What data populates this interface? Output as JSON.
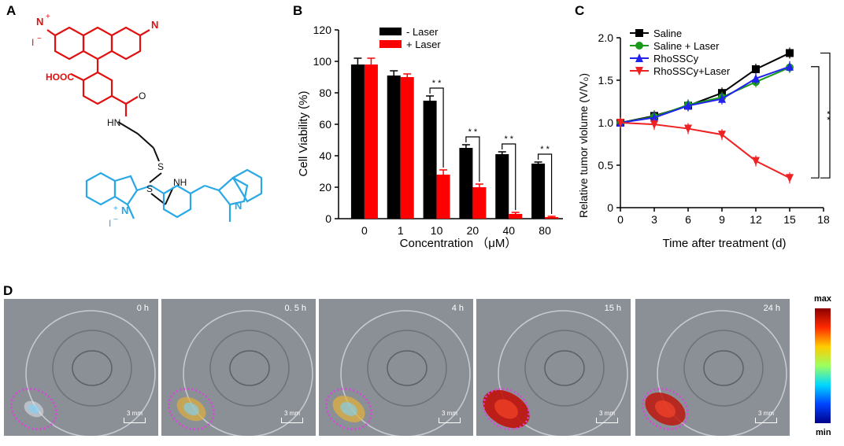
{
  "panels": {
    "a": "A",
    "b": "B",
    "c": "C",
    "d": "D"
  },
  "structure": {
    "nme2_top_left": "N",
    "plus_sign": "+",
    "iodide_top": "I",
    "minus": "−",
    "nme2_top_right": "N",
    "cooh": "HOOC",
    "o_carbonyl": "O",
    "hn": "HN",
    "s1": "S",
    "s2": "S",
    "nh": "NH",
    "n_left": "N",
    "iodide_bottom": "I",
    "n_right": "N"
  },
  "chart_data": [
    {
      "type": "bar",
      "panel": "B",
      "categories": [
        "0",
        "1",
        "10",
        "20",
        "40",
        "80"
      ],
      "series": [
        {
          "name": "- Laser",
          "color": "#000000",
          "values": [
            98,
            91,
            75,
            45,
            41,
            35
          ],
          "errors": [
            4,
            3,
            3,
            2,
            1.5,
            1
          ]
        },
        {
          "name": "+ Laser",
          "color": "#ff0000",
          "values": [
            98,
            90,
            28,
            20,
            3,
            1
          ],
          "errors": [
            4,
            2,
            3,
            2,
            1,
            0.5
          ]
        }
      ],
      "xlabel": "Concentration （μM）",
      "ylabel": "Cell Viability (%)",
      "ylim": [
        0,
        120
      ],
      "yticks": [
        "0",
        "20",
        "40",
        "60",
        "80",
        "100",
        "120"
      ],
      "significance": "* *",
      "significance_categories": [
        "10",
        "20",
        "40",
        "80"
      ],
      "legend": "top-right"
    },
    {
      "type": "line",
      "panel": "C",
      "x": [
        0,
        3,
        6,
        9,
        12,
        15
      ],
      "series": [
        {
          "name": "Saline",
          "color": "#000000",
          "marker": "square",
          "values": [
            1.0,
            1.08,
            1.2,
            1.35,
            1.63,
            1.82
          ]
        },
        {
          "name": "Saline + Laser",
          "color": "#1a9a1a",
          "marker": "circle",
          "values": [
            1.0,
            1.07,
            1.21,
            1.3,
            1.48,
            1.65
          ]
        },
        {
          "name": "RhoSSCy",
          "color": "#2222ee",
          "marker": "triangle-up",
          "values": [
            1.0,
            1.06,
            1.2,
            1.28,
            1.52,
            1.66
          ]
        },
        {
          "name": "RhoSSCy+Laser",
          "color": "#ee2222",
          "marker": "triangle-down",
          "values": [
            1.0,
            0.98,
            0.93,
            0.86,
            0.55,
            0.35
          ]
        }
      ],
      "xlabel": "Time after treatment (d)",
      "ylabel": "Relative tumor vlolume (V/V₀)",
      "xlim": [
        0,
        18
      ],
      "ylim": [
        0,
        2.0
      ],
      "xticks": [
        "0",
        "3",
        "6",
        "9",
        "12",
        "15",
        "18"
      ],
      "yticks": [
        "0",
        "0.5",
        "1.0",
        "1.5",
        "2.0"
      ],
      "significance": "* *",
      "legend": "top-left"
    }
  ],
  "imaging": {
    "frames": [
      {
        "time": "0 h",
        "intensity": 0.15
      },
      {
        "time": "0. 5 h",
        "intensity": 0.45
      },
      {
        "time": "4 h",
        "intensity": 0.55
      },
      {
        "time": "15 h",
        "intensity": 1.0
      },
      {
        "time": "24 h",
        "intensity": 0.8
      }
    ],
    "scale_label": "3 mm",
    "colorbar_max": "max",
    "colorbar_min": "min"
  }
}
